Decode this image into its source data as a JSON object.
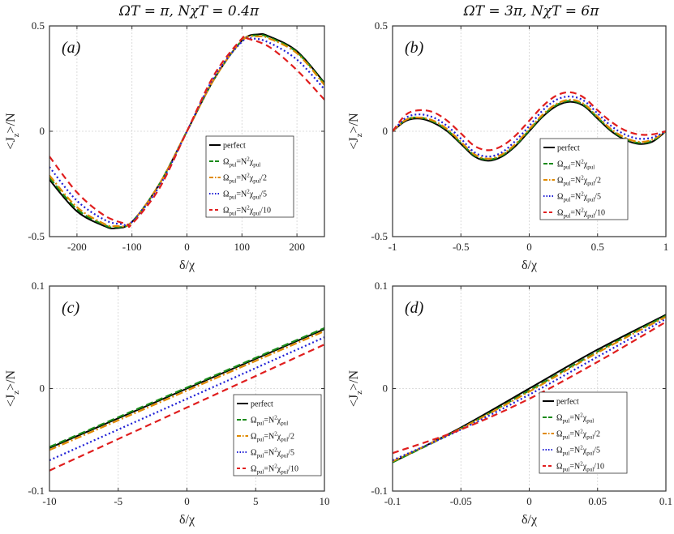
{
  "column_titles": [
    "ΩT = π, NχT = 0.4π",
    "ΩT = 3π, NχT = 6π"
  ],
  "legend": [
    {
      "name": "perfect",
      "color": "#000000",
      "dash": "",
      "parts": [
        [
          "perfect",
          ""
        ]
      ]
    },
    {
      "name": "Ω_pul=N^2χ_pul",
      "color": "#1a8a1a",
      "dash": "9 4",
      "parts": [
        [
          "Ω",
          ""
        ],
        [
          "pul",
          "sub"
        ],
        [
          "=N",
          ""
        ],
        [
          "2",
          "sup"
        ],
        [
          "χ",
          ""
        ],
        [
          "pul",
          "sub"
        ]
      ]
    },
    {
      "name": "Ω_pul=N^2χ_pul/2",
      "color": "#e08a00",
      "dash": "9 3 2 3",
      "parts": [
        [
          "Ω",
          ""
        ],
        [
          "pul",
          "sub"
        ],
        [
          "=N",
          ""
        ],
        [
          "2",
          "sup"
        ],
        [
          "χ",
          ""
        ],
        [
          "pul",
          "sub"
        ],
        [
          "/2",
          ""
        ]
      ]
    },
    {
      "name": "Ω_pul=N^2χ_pul/5",
      "color": "#1f1fd6",
      "dash": "2 3",
      "parts": [
        [
          "Ω",
          ""
        ],
        [
          "pul",
          "sub"
        ],
        [
          "=N",
          ""
        ],
        [
          "2",
          "sup"
        ],
        [
          "χ",
          ""
        ],
        [
          "pul",
          "sub"
        ],
        [
          "/5",
          ""
        ]
      ]
    },
    {
      "name": "Ω_pul=N^2χ_pul/10",
      "color": "#e01e1e",
      "dash": "8 5",
      "parts": [
        [
          "Ω",
          ""
        ],
        [
          "pul",
          "sub"
        ],
        [
          "=N",
          ""
        ],
        [
          "2",
          "sup"
        ],
        [
          "χ",
          ""
        ],
        [
          "pul",
          "sub"
        ],
        [
          "/10",
          ""
        ]
      ]
    }
  ],
  "chart_data": [
    {
      "type": "line",
      "panel": "(a)",
      "xlabel": "δ/χ",
      "ylabel": "<J_z>/N",
      "xlim": [
        -250,
        250
      ],
      "ylim": [
        -0.5,
        0.5
      ],
      "xticks": [
        -200,
        -100,
        0,
        100,
        200
      ],
      "xtick_labels": [
        "-200",
        "-100",
        "0",
        "100",
        "200"
      ],
      "yticks": [
        -0.5,
        0,
        0.5
      ],
      "ytick_labels": [
        "-0.5",
        "0",
        "0.5"
      ],
      "grid": true,
      "series": [
        {
          "name": "perfect",
          "x": [
            -250,
            -200,
            -150,
            -130,
            -100,
            -50,
            0,
            50,
            100,
            130,
            150,
            200,
            250
          ],
          "y": [
            -0.23,
            -0.38,
            -0.45,
            -0.46,
            -0.43,
            -0.25,
            0.0,
            0.25,
            0.43,
            0.46,
            0.45,
            0.38,
            0.23
          ]
        },
        {
          "name": "Ω_pul=N^2χ_pul",
          "x": [
            -250,
            -200,
            -150,
            -130,
            -100,
            -50,
            0,
            50,
            100,
            130,
            150,
            200,
            250
          ],
          "y": [
            -0.22,
            -0.37,
            -0.445,
            -0.455,
            -0.43,
            -0.25,
            0.0,
            0.25,
            0.43,
            0.455,
            0.445,
            0.375,
            0.225
          ]
        },
        {
          "name": "Ω_pul=N^2χ_pul/2",
          "x": [
            -250,
            -200,
            -150,
            -130,
            -100,
            -50,
            0,
            50,
            100,
            130,
            150,
            200,
            250
          ],
          "y": [
            -0.21,
            -0.36,
            -0.44,
            -0.45,
            -0.43,
            -0.25,
            0.0,
            0.25,
            0.43,
            0.45,
            0.44,
            0.37,
            0.22
          ]
        },
        {
          "name": "Ω_pul=N^2χ_pul/5",
          "x": [
            -250,
            -200,
            -150,
            -120,
            -100,
            -50,
            0,
            50,
            100,
            120,
            150,
            200,
            250
          ],
          "y": [
            -0.17,
            -0.33,
            -0.42,
            -0.44,
            -0.43,
            -0.26,
            0.0,
            0.26,
            0.425,
            0.44,
            0.42,
            0.34,
            0.2
          ]
        },
        {
          "name": "Ω_pul=N^2χ_pul/10",
          "x": [
            -250,
            -200,
            -150,
            -110,
            -100,
            -50,
            0,
            50,
            100,
            110,
            150,
            200,
            250
          ],
          "y": [
            -0.12,
            -0.29,
            -0.4,
            -0.44,
            -0.44,
            -0.27,
            0.0,
            0.27,
            0.44,
            0.44,
            0.4,
            0.29,
            0.15
          ]
        }
      ]
    },
    {
      "type": "line",
      "panel": "(b)",
      "xlabel": "δ/χ",
      "ylabel": "<J_z>/N",
      "xlim": [
        -1,
        1
      ],
      "ylim": [
        -0.5,
        0.5
      ],
      "xticks": [
        -1,
        -0.5,
        0,
        0.5,
        1
      ],
      "xtick_labels": [
        "-1",
        "-0.5",
        "0",
        "0.5",
        "1"
      ],
      "yticks": [
        -0.5,
        0,
        0.5
      ],
      "ytick_labels": [
        "-0.5",
        "0",
        "0.5"
      ],
      "grid": true,
      "series": [
        {
          "name": "perfect",
          "x": [
            -1,
            -0.9,
            -0.8,
            -0.7,
            -0.6,
            -0.5,
            -0.4,
            -0.3,
            -0.2,
            -0.1,
            0,
            0.1,
            0.2,
            0.3,
            0.4,
            0.5,
            0.6,
            0.7,
            0.8,
            0.9,
            1
          ],
          "y": [
            0,
            0.05,
            0.06,
            0.04,
            0.0,
            -0.06,
            -0.12,
            -0.14,
            -0.12,
            -0.07,
            0,
            0.07,
            0.12,
            0.14,
            0.12,
            0.06,
            0.0,
            -0.04,
            -0.06,
            -0.05,
            0
          ]
        },
        {
          "name": "Ω_pul=N^2χ_pul",
          "x": [
            -1,
            -0.9,
            -0.8,
            -0.7,
            -0.6,
            -0.5,
            -0.4,
            -0.3,
            -0.2,
            -0.1,
            0,
            0.1,
            0.2,
            0.3,
            0.4,
            0.5,
            0.6,
            0.7,
            0.8,
            0.9,
            1
          ],
          "y": [
            0,
            0.055,
            0.065,
            0.045,
            0.005,
            -0.055,
            -0.115,
            -0.135,
            -0.115,
            -0.065,
            0.005,
            0.075,
            0.125,
            0.145,
            0.125,
            0.065,
            0.005,
            -0.035,
            -0.055,
            -0.045,
            0
          ]
        },
        {
          "name": "Ω_pul=N^2χ_pul/2",
          "x": [
            -1,
            -0.9,
            -0.8,
            -0.7,
            -0.6,
            -0.5,
            -0.4,
            -0.3,
            -0.2,
            -0.1,
            0,
            0.1,
            0.2,
            0.3,
            0.4,
            0.5,
            0.6,
            0.7,
            0.8,
            0.9,
            1
          ],
          "y": [
            0,
            0.055,
            0.065,
            0.05,
            0.01,
            -0.05,
            -0.11,
            -0.13,
            -0.11,
            -0.06,
            0.01,
            0.08,
            0.13,
            0.15,
            0.13,
            0.07,
            0.01,
            -0.03,
            -0.05,
            -0.04,
            0
          ]
        },
        {
          "name": "Ω_pul=N^2χ_pul/5",
          "x": [
            -1,
            -0.9,
            -0.8,
            -0.7,
            -0.6,
            -0.5,
            -0.4,
            -0.3,
            -0.2,
            -0.1,
            0,
            0.1,
            0.2,
            0.3,
            0.4,
            0.5,
            0.6,
            0.7,
            0.8,
            0.9,
            1
          ],
          "y": [
            0,
            0.065,
            0.08,
            0.065,
            0.025,
            -0.035,
            -0.1,
            -0.12,
            -0.1,
            -0.045,
            0.025,
            0.1,
            0.15,
            0.165,
            0.145,
            0.085,
            0.025,
            -0.015,
            -0.035,
            -0.03,
            0
          ]
        },
        {
          "name": "Ω_pul=N^2χ_pul/10",
          "x": [
            -1,
            -0.9,
            -0.8,
            -0.7,
            -0.6,
            -0.5,
            -0.4,
            -0.3,
            -0.2,
            -0.1,
            0,
            0.1,
            0.2,
            0.3,
            0.4,
            0.5,
            0.6,
            0.7,
            0.8,
            0.9,
            1
          ],
          "y": [
            0,
            0.08,
            0.1,
            0.09,
            0.05,
            -0.01,
            -0.07,
            -0.09,
            -0.07,
            -0.02,
            0.05,
            0.12,
            0.17,
            0.185,
            0.16,
            0.1,
            0.045,
            0.005,
            -0.015,
            -0.015,
            0
          ]
        }
      ]
    },
    {
      "type": "line",
      "panel": "(c)",
      "xlabel": "δ/χ",
      "ylabel": "<J_z>/N",
      "xlim": [
        -10,
        10
      ],
      "ylim": [
        -0.1,
        0.1
      ],
      "xticks": [
        -10,
        -5,
        0,
        5,
        10
      ],
      "xtick_labels": [
        "-10",
        "-5",
        "0",
        "5",
        "10"
      ],
      "yticks": [
        -0.1,
        0,
        0.1
      ],
      "ytick_labels": [
        "-0.1",
        "0",
        "0.1"
      ],
      "grid": true,
      "series": [
        {
          "name": "perfect",
          "x": [
            -10,
            10
          ],
          "y": [
            -0.058,
            0.058
          ]
        },
        {
          "name": "Ω_pul=N^2χ_pul",
          "x": [
            -10,
            10
          ],
          "y": [
            -0.057,
            0.059
          ]
        },
        {
          "name": "Ω_pul=N^2χ_pul/2",
          "x": [
            -10,
            10
          ],
          "y": [
            -0.06,
            0.056
          ]
        },
        {
          "name": "Ω_pul=N^2χ_pul/5",
          "x": [
            -10,
            10
          ],
          "y": [
            -0.07,
            0.05
          ]
        },
        {
          "name": "Ω_pul=N^2χ_pul/10",
          "x": [
            -10,
            10
          ],
          "y": [
            -0.08,
            0.043
          ]
        }
      ]
    },
    {
      "type": "line",
      "panel": "(d)",
      "xlabel": "δ/χ",
      "ylabel": "<J_z>/N",
      "xlim": [
        -0.1,
        0.1
      ],
      "ylim": [
        -0.1,
        0.1
      ],
      "xticks": [
        -0.1,
        -0.05,
        0,
        0.05,
        0.1
      ],
      "xtick_labels": [
        "-0.1",
        "-0.05",
        "0",
        "0.05",
        "0.1"
      ],
      "yticks": [
        -0.1,
        0,
        0.1
      ],
      "ytick_labels": [
        "-0.1",
        "0",
        "0.1"
      ],
      "grid": true,
      "series": [
        {
          "name": "perfect",
          "x": [
            -0.1,
            -0.05,
            0,
            0.05,
            0.1
          ],
          "y": [
            -0.072,
            -0.038,
            0.0,
            0.038,
            0.072
          ]
        },
        {
          "name": "Ω_pul=N^2χ_pul",
          "x": [
            -0.1,
            -0.05,
            0,
            0.05,
            0.1
          ],
          "y": [
            -0.072,
            -0.039,
            -0.002,
            0.036,
            0.071
          ]
        },
        {
          "name": "Ω_pul=N^2χ_pul/2",
          "x": [
            -0.1,
            -0.05,
            0,
            0.05,
            0.1
          ],
          "y": [
            -0.071,
            -0.039,
            -0.003,
            0.035,
            0.07
          ]
        },
        {
          "name": "Ω_pul=N^2χ_pul/5",
          "x": [
            -0.1,
            -0.05,
            0,
            0.05,
            0.1
          ],
          "y": [
            -0.07,
            -0.04,
            -0.006,
            0.031,
            0.068
          ]
        },
        {
          "name": "Ω_pul=N^2χ_pul/10",
          "x": [
            -0.1,
            -0.05,
            0,
            0.05,
            0.1
          ],
          "y": [
            -0.063,
            -0.04,
            -0.01,
            0.026,
            0.065
          ]
        }
      ]
    }
  ]
}
